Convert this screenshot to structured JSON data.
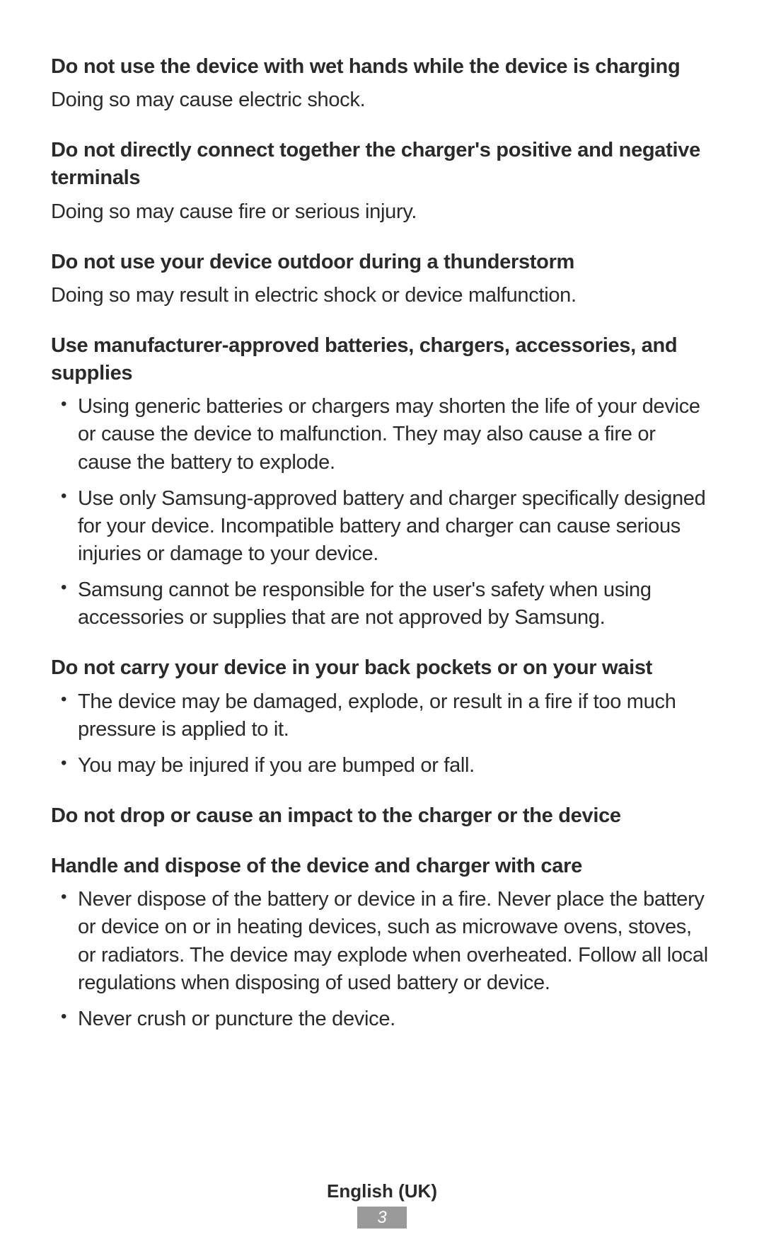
{
  "sections": [
    {
      "heading": "Do not use the device with wet hands while the device is charging",
      "text": "Doing so may cause electric shock."
    },
    {
      "heading": "Do not directly connect together the charger's positive and negative terminals",
      "text": "Doing so may cause fire or serious injury."
    },
    {
      "heading": "Do not use your device outdoor during a thunderstorm",
      "text": "Doing so may result in electric shock or device malfunction."
    },
    {
      "heading": "Use manufacturer-approved batteries, chargers, accessories, and supplies",
      "bullets": [
        "Using generic batteries or chargers may shorten the life of your device or cause the device to malfunction. They may also cause a fire or cause the battery to explode.",
        "Use only Samsung-approved battery and charger specifically designed for your device. Incompatible battery and charger can cause serious injuries or damage to your device.",
        "Samsung cannot be responsible for the user's safety when using accessories or supplies that are not approved by Samsung."
      ]
    },
    {
      "heading": "Do not carry your device in your back pockets or on your waist",
      "bullets": [
        "The device may be damaged, explode, or result in a fire if too much pressure is applied to it.",
        "You may be injured if you are bumped or fall."
      ]
    },
    {
      "heading": "Do not drop or cause an impact to the charger or the device"
    },
    {
      "heading": "Handle and dispose of the device and charger with care",
      "bullets": [
        "Never dispose of the battery or device in a fire. Never place the battery or device on or in heating devices, such as microwave ovens, stoves, or radiators. The device may explode when overheated. Follow all local regulations when disposing of used battery or device.",
        "Never crush or puncture the device."
      ]
    }
  ],
  "footer": {
    "language": "English (UK)",
    "page": "3"
  }
}
